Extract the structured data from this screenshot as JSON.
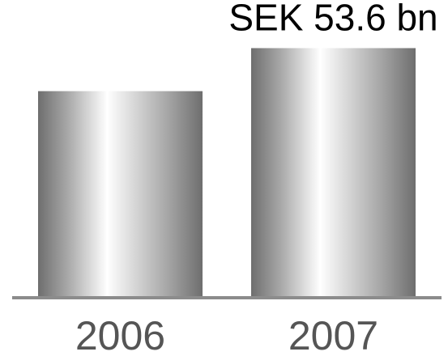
{
  "chart_data": {
    "type": "bar",
    "categories": [
      "2006",
      "2007"
    ],
    "values": [
      44.3,
      53.6
    ],
    "data_labels": [
      "",
      "SEK 53.6 bn"
    ],
    "title": "",
    "xlabel": "",
    "ylabel": "",
    "ylim": [
      0,
      64
    ],
    "grid": false,
    "legend": "none",
    "colors": {
      "bar_dark": "#6e6e6e",
      "bar_mid": "#a8a8a8",
      "bar_light": "#ffffff",
      "axis": "#8c8c8c",
      "tick_text": "#555555",
      "label_text": "#000000"
    }
  }
}
